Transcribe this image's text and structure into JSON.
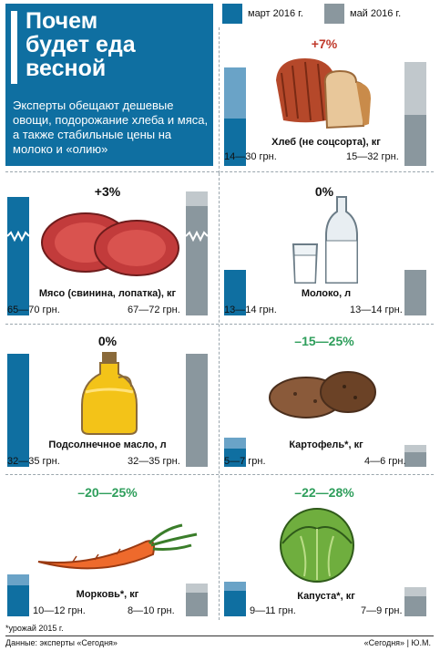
{
  "header": {
    "title_line1": "Почем",
    "title_line2": "будет еда",
    "title_line3": "весной",
    "subtitle": "Эксперты обещают дешевые овощи, подорожание хлеба и мяса, а также стабильные цены на молоко и «олию»"
  },
  "legend": {
    "march": "март 2016 г.",
    "may": "май 2016 г."
  },
  "colors": {
    "march": "#0f6fa1",
    "may": "#8a979e",
    "growth": "#c0392b",
    "decline": "#2e9e5b",
    "neutral": "#111111"
  },
  "chart_data": {
    "type": "bar",
    "series": [
      {
        "name": "март 2016 г.",
        "values_min": [
          14,
          65,
          13,
          32,
          5,
          10,
          9
        ],
        "values_max": [
          30,
          70,
          14,
          35,
          7,
          12,
          11
        ]
      },
      {
        "name": "май 2016 г.",
        "values_min": [
          15,
          67,
          13,
          32,
          4,
          8,
          7
        ],
        "values_max": [
          32,
          72,
          14,
          35,
          6,
          10,
          9
        ]
      }
    ],
    "categories": [
      "Хлеб (не соцсорта), кг",
      "Мясо (свинина, лопатка), кг",
      "Молоко, л",
      "Подсолнечное масло, л",
      "Картофель*, кг",
      "Морковь*, кг",
      "Капуста*, кг"
    ]
  },
  "items": {
    "bread": {
      "change": "+7%",
      "name": "Хлеб (не соцсорта), кг",
      "march": "14—30 грн.",
      "may": "15—32 грн."
    },
    "meat": {
      "change": "+3%",
      "name": "Мясо (свинина, лопатка), кг",
      "march": "65—70 грн.",
      "may": "67—72 грн."
    },
    "milk": {
      "change": "0%",
      "name": "Молоко, л",
      "march": "13—14 грн.",
      "may": "13—14 грн."
    },
    "oil": {
      "change": "0%",
      "name": "Подсолнечное масло, л",
      "march": "32—35 грн.",
      "may": "32—35 грн."
    },
    "potato": {
      "change": "–15—25%",
      "name": "Картофель*, кг",
      "march": "5—7 грн.",
      "may": "4—6 грн."
    },
    "carrot": {
      "change": "–20—25%",
      "name": "Морковь*, кг",
      "march": "10—12 грн.",
      "may": "8—10 грн."
    },
    "cabbage": {
      "change": "–22—28%",
      "name": "Капуста*, кг",
      "march": "9—11 грн.",
      "may": "7—9 грн."
    }
  },
  "footer": {
    "footnote": "*урожай 2015 г.",
    "source": "Данные: эксперты «Сегодня»",
    "credit": "«Сегодня» | Ю.М."
  }
}
